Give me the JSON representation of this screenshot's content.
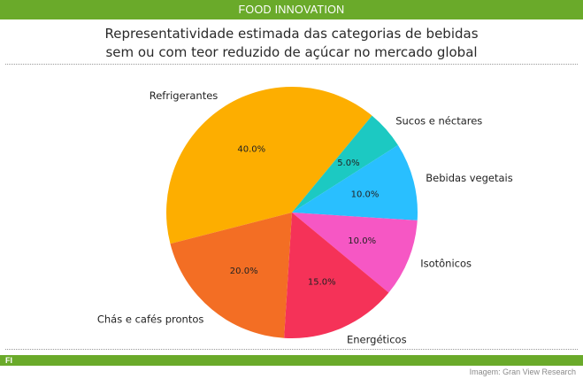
{
  "header": {
    "brand": "FOOD INNOVATION"
  },
  "chart_data": {
    "type": "pie",
    "title_line1": "Representatividade estimada das categorias de bebidas",
    "title_line2": "sem ou com teor reduzido de açúcar no mercado global",
    "categories": [
      "Refrigerantes",
      "Sucos e néctares",
      "Bebidas vegetais",
      "Isotônicos",
      "Energéticos",
      "Chás e cafés prontos"
    ],
    "values": [
      40.0,
      5.0,
      10.0,
      10.0,
      15.0,
      20.0
    ],
    "value_labels": [
      "40.0%",
      "5.0%",
      "10.0%",
      "10.0%",
      "15.0%",
      "20.0%"
    ],
    "colors": [
      "#fdae00",
      "#1cc9c2",
      "#29bfff",
      "#f657c4",
      "#f53258",
      "#f36e24"
    ],
    "start_angle_deg": 194.4,
    "direction": "clockwise"
  },
  "footer": {
    "tag": "FI",
    "credit": "Imagem: Gran View Research"
  }
}
